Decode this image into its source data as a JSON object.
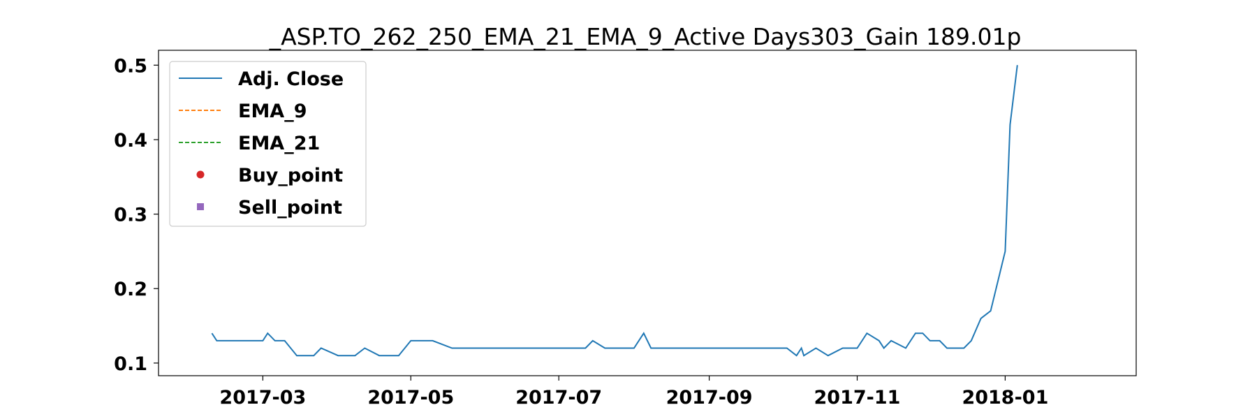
{
  "chart_data": {
    "type": "line",
    "title": "_ASP.TO_262_250_EMA_21_EMA_9_Active Days303_Gain 189.01p",
    "xlabel": "",
    "ylabel": "",
    "x_ticks": [
      "2017-03",
      "2017-05",
      "2017-07",
      "2017-09",
      "2017-11",
      "2018-01"
    ],
    "y_ticks": [
      "0.1",
      "0.2",
      "0.3",
      "0.4",
      "0.5"
    ],
    "xlim": [
      "2017-01-17",
      "2018-02-24"
    ],
    "ylim": [
      0.083,
      0.52
    ],
    "grid": false,
    "legend_position": "top-left",
    "colors": {
      "adj_close": "#1f77b4",
      "ema_9": "#ff7f0e",
      "ema_21": "#2ca02c",
      "buy": "#d62728",
      "sell": "#9467bd"
    },
    "series": [
      {
        "name": "Adj. Close",
        "style": "solid",
        "points": [
          [
            "2017-02-08",
            0.14
          ],
          [
            "2017-02-10",
            0.13
          ],
          [
            "2017-02-20",
            0.13
          ],
          [
            "2017-03-01",
            0.13
          ],
          [
            "2017-03-03",
            0.14
          ],
          [
            "2017-03-06",
            0.13
          ],
          [
            "2017-03-10",
            0.13
          ],
          [
            "2017-03-15",
            0.11
          ],
          [
            "2017-03-22",
            0.11
          ],
          [
            "2017-03-25",
            0.12
          ],
          [
            "2017-04-01",
            0.11
          ],
          [
            "2017-04-08",
            0.11
          ],
          [
            "2017-04-12",
            0.12
          ],
          [
            "2017-04-18",
            0.11
          ],
          [
            "2017-04-26",
            0.11
          ],
          [
            "2017-05-01",
            0.13
          ],
          [
            "2017-05-10",
            0.13
          ],
          [
            "2017-05-18",
            0.12
          ],
          [
            "2017-05-28",
            0.12
          ],
          [
            "2017-06-05",
            0.12
          ],
          [
            "2017-06-13",
            0.12
          ],
          [
            "2017-06-20",
            0.12
          ],
          [
            "2017-06-27",
            0.12
          ],
          [
            "2017-07-05",
            0.12
          ],
          [
            "2017-07-12",
            0.12
          ],
          [
            "2017-07-15",
            0.13
          ],
          [
            "2017-07-20",
            0.12
          ],
          [
            "2017-07-25",
            0.12
          ],
          [
            "2017-08-01",
            0.12
          ],
          [
            "2017-08-05",
            0.14
          ],
          [
            "2017-08-08",
            0.12
          ],
          [
            "2017-08-12",
            0.12
          ],
          [
            "2017-08-18",
            0.12
          ],
          [
            "2017-08-25",
            0.12
          ],
          [
            "2017-09-02",
            0.12
          ],
          [
            "2017-09-08",
            0.12
          ],
          [
            "2017-09-14",
            0.12
          ],
          [
            "2017-09-20",
            0.12
          ],
          [
            "2017-09-28",
            0.12
          ],
          [
            "2017-10-03",
            0.12
          ],
          [
            "2017-10-07",
            0.11
          ],
          [
            "2017-10-09",
            0.12
          ],
          [
            "2017-10-10",
            0.11
          ],
          [
            "2017-10-15",
            0.12
          ],
          [
            "2017-10-20",
            0.11
          ],
          [
            "2017-10-26",
            0.12
          ],
          [
            "2017-11-01",
            0.12
          ],
          [
            "2017-11-05",
            0.14
          ],
          [
            "2017-11-10",
            0.13
          ],
          [
            "2017-11-12",
            0.12
          ],
          [
            "2017-11-15",
            0.13
          ],
          [
            "2017-11-21",
            0.12
          ],
          [
            "2017-11-25",
            0.14
          ],
          [
            "2017-11-28",
            0.14
          ],
          [
            "2017-12-01",
            0.13
          ],
          [
            "2017-12-05",
            0.13
          ],
          [
            "2017-12-08",
            0.12
          ],
          [
            "2017-12-12",
            0.12
          ],
          [
            "2017-12-15",
            0.12
          ],
          [
            "2017-12-18",
            0.13
          ],
          [
            "2017-12-22",
            0.16
          ],
          [
            "2017-12-26",
            0.17
          ],
          [
            "2018-01-01",
            0.25
          ],
          [
            "2018-01-03",
            0.42
          ],
          [
            "2018-01-06",
            0.5
          ]
        ]
      },
      {
        "name": "EMA_9",
        "style": "dashed",
        "points": []
      },
      {
        "name": "EMA_21",
        "style": "dashed",
        "points": []
      },
      {
        "name": "Buy_point",
        "style": "circle",
        "points": []
      },
      {
        "name": "Sell_point",
        "style": "square",
        "points": []
      }
    ]
  }
}
